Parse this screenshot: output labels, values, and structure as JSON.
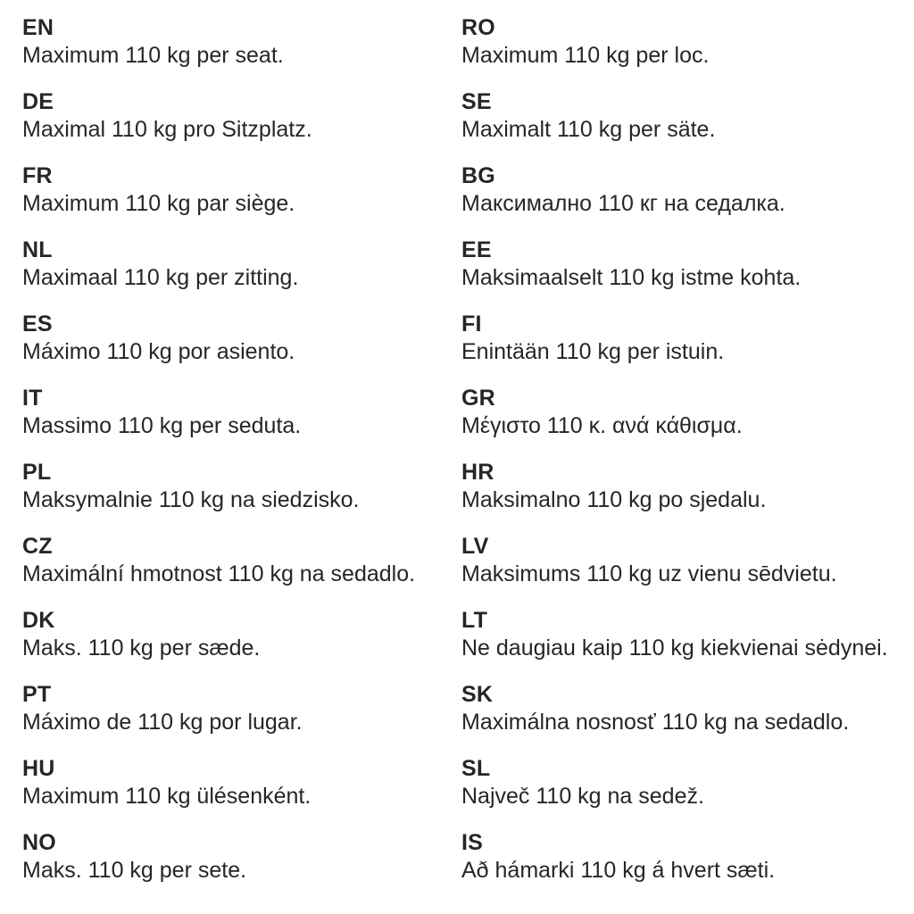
{
  "page": {
    "background_color": "#ffffff",
    "text_color": "#262626"
  },
  "columns": [
    {
      "entries": [
        {
          "code": "EN",
          "text": "Maximum 110 kg per seat."
        },
        {
          "code": "DE",
          "text": "Maximal 110 kg pro Sitzplatz."
        },
        {
          "code": "FR",
          "text": "Maximum 110 kg par siège."
        },
        {
          "code": "NL",
          "text": "Maximaal 110 kg per zitting."
        },
        {
          "code": "ES",
          "text": "Máximo 110 kg por asiento."
        },
        {
          "code": "IT",
          "text": "Massimo 110 kg per seduta."
        },
        {
          "code": "PL",
          "text": "Maksymalnie 110 kg na siedzisko."
        },
        {
          "code": "CZ",
          "text": "Maximální hmotnost 110 kg na sedadlo."
        },
        {
          "code": "DK",
          "text": "Maks. 110 kg per sæde."
        },
        {
          "code": "PT",
          "text": "Máximo de 110 kg por lugar."
        },
        {
          "code": "HU",
          "text": "Maximum 110 kg ülésenként."
        },
        {
          "code": "NO",
          "text": "Maks. 110 kg per sete."
        }
      ]
    },
    {
      "entries": [
        {
          "code": "RO",
          "text": "Maximum 110 kg per loc."
        },
        {
          "code": "SE",
          "text": "Maximalt 110 kg per säte."
        },
        {
          "code": "BG",
          "text": "Максимално 110 кг на седалка."
        },
        {
          "code": "EE",
          "text": "Maksimaalselt 110 kg istme kohta."
        },
        {
          "code": "FI",
          "text": "Enintään 110 kg per istuin."
        },
        {
          "code": "GR",
          "text": "Μέγιστο 110 κ. ανά κάθισμα."
        },
        {
          "code": "HR",
          "text": "Maksimalno 110 kg po sjedalu."
        },
        {
          "code": "LV",
          "text": "Maksimums 110 kg uz vienu sēdvietu."
        },
        {
          "code": "LT",
          "text": "Ne daugiau kaip 110 kg kiekvienai sėdynei."
        },
        {
          "code": "SK",
          "text": "Maximálna nosnosť 110 kg na sedadlo."
        },
        {
          "code": "SL",
          "text": "Največ 110 kg na sedež."
        },
        {
          "code": "IS",
          "text": "Að hámarki 110 kg á hvert sæti."
        }
      ]
    }
  ]
}
